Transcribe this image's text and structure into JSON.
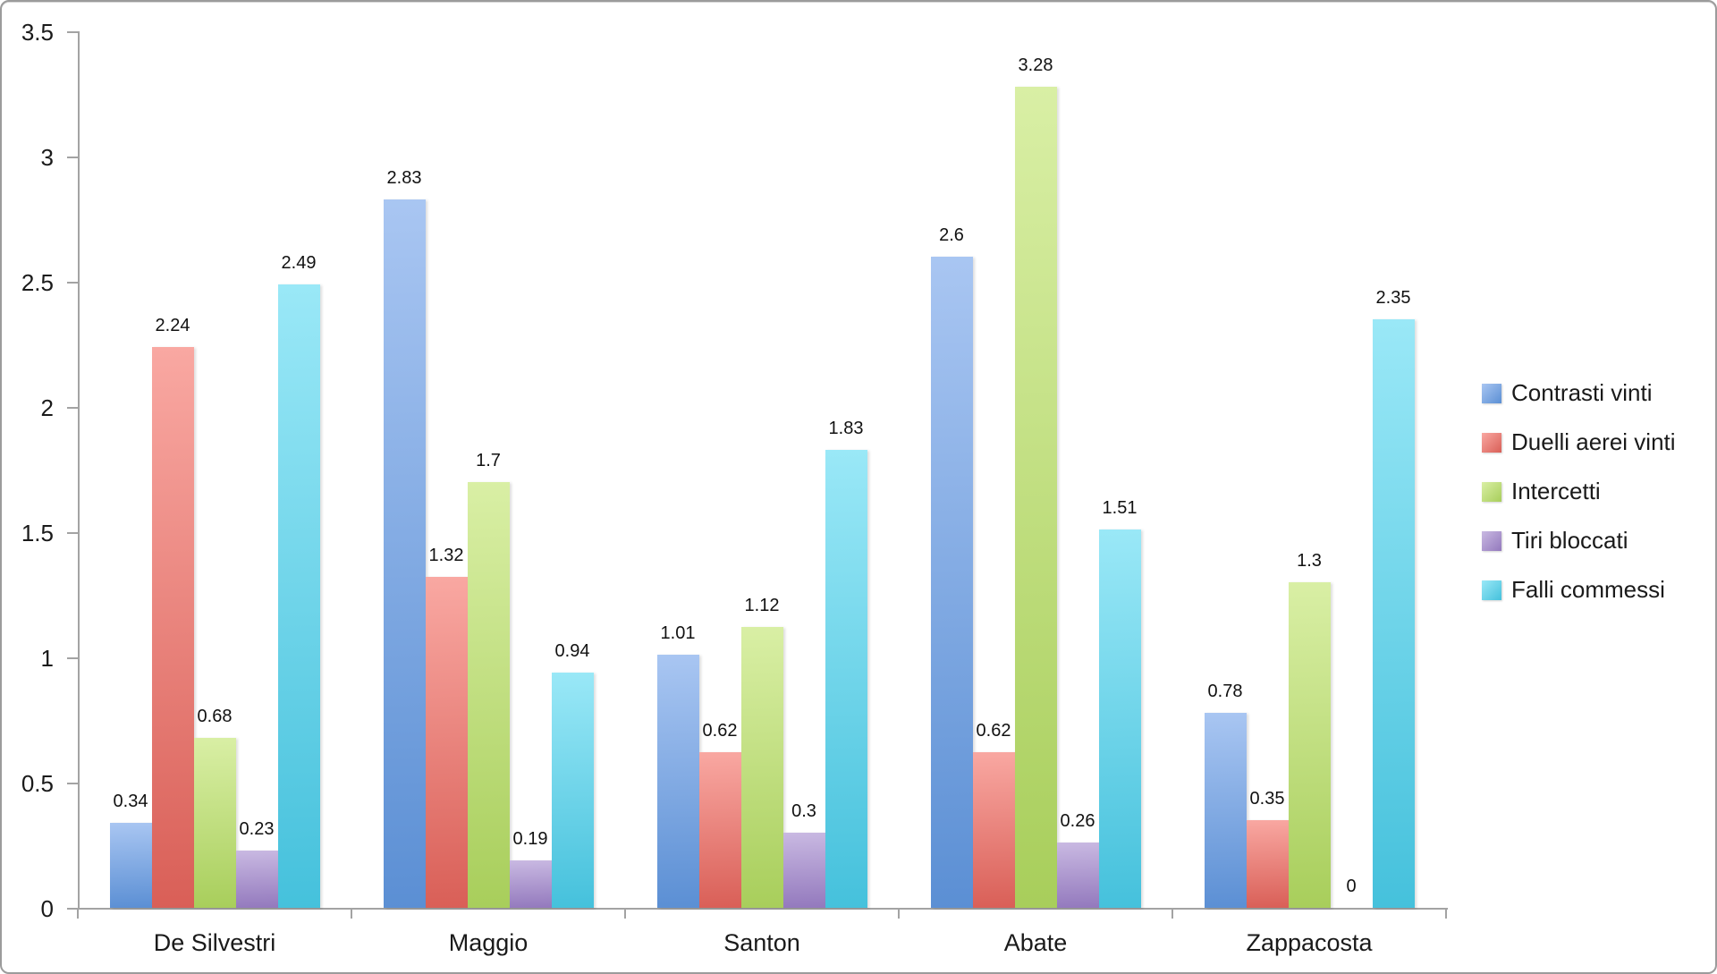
{
  "chart_data": {
    "type": "bar",
    "title": "",
    "xlabel": "",
    "ylabel": "",
    "categories": [
      "De Silvestri",
      "Maggio",
      "Santon",
      "Abate",
      "Zappacosta"
    ],
    "series": [
      {
        "name": "Contrasti vinti",
        "color": "#5b8fd4",
        "color_light": "#a9c6f2",
        "values": [
          0.34,
          2.83,
          1.01,
          2.6,
          0.78
        ],
        "labels": [
          "0.34",
          "2.83",
          "1.01",
          "2.6",
          "0.78"
        ]
      },
      {
        "name": "Duelli aerei vinti",
        "color": "#d95f57",
        "color_light": "#f9a8a2",
        "values": [
          2.24,
          1.32,
          0.62,
          0.62,
          0.35
        ],
        "labels": [
          "2.24",
          "1.32",
          "0.62",
          "0.62",
          "0.35"
        ]
      },
      {
        "name": "Intercetti",
        "color": "#a8ce5b",
        "color_light": "#d9efa5",
        "values": [
          0.68,
          1.7,
          1.12,
          3.28,
          1.3
        ],
        "labels": [
          "0.68",
          "1.7",
          "1.12",
          "3.28",
          "1.3"
        ]
      },
      {
        "name": "Tiri bloccati",
        "color": "#9379bd",
        "color_light": "#c9b9e2",
        "values": [
          0.23,
          0.19,
          0.3,
          0.26,
          0
        ],
        "labels": [
          "0.23",
          "0.19",
          "0.3",
          "0.26",
          "0"
        ]
      },
      {
        "name": "Falli commessi",
        "color": "#45c1dc",
        "color_light": "#9ae8f7",
        "values": [
          2.49,
          0.94,
          1.83,
          1.51,
          2.35
        ],
        "labels": [
          "2.49",
          "0.94",
          "1.83",
          "1.51",
          "2.35"
        ]
      }
    ],
    "y_axis": {
      "min": 0,
      "max": 3.5,
      "step": 0.5,
      "tick_labels": [
        "0",
        "0.5",
        "1",
        "1.5",
        "2",
        "2.5",
        "3",
        "3.5"
      ]
    },
    "grid": false,
    "legend_position": "right",
    "axis_color": "#a3a3a3",
    "text_color": "#1a1a1a"
  }
}
